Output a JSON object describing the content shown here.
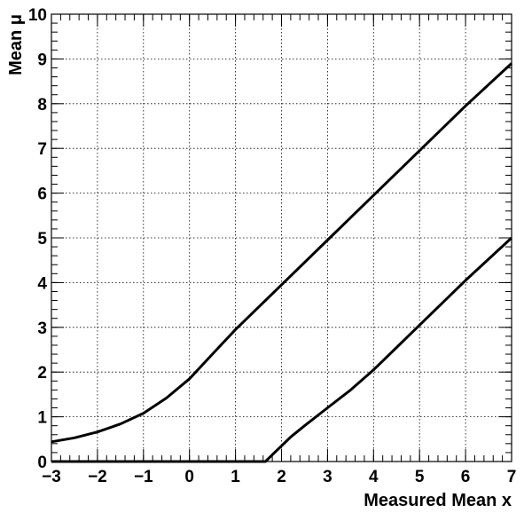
{
  "chart_data": {
    "type": "line",
    "title": "",
    "xlabel": "Measured Mean x",
    "ylabel": "Mean μ",
    "xlim": [
      -3,
      7
    ],
    "ylim": [
      0,
      10
    ],
    "xticks": [
      -3,
      -2,
      -1,
      0,
      1,
      2,
      3,
      4,
      5,
      6,
      7
    ],
    "xtick_labels": [
      "−3",
      "−2",
      "−1",
      "0",
      "1",
      "2",
      "3",
      "4",
      "5",
      "6",
      "7"
    ],
    "yticks": [
      0,
      1,
      2,
      3,
      4,
      5,
      6,
      7,
      8,
      9,
      10
    ],
    "ytick_labels": [
      "0",
      "1",
      "2",
      "3",
      "4",
      "5",
      "6",
      "7",
      "8",
      "9",
      "10"
    ],
    "grid": true,
    "series": [
      {
        "x": [
          -3,
          -2.5,
          -2,
          -1.5,
          -1,
          -0.5,
          0,
          0.5,
          1,
          2,
          3,
          4,
          5,
          6,
          7
        ],
        "y": [
          0.44,
          0.53,
          0.66,
          0.84,
          1.08,
          1.42,
          1.85,
          2.4,
          2.95,
          3.95,
          4.95,
          5.95,
          6.95,
          7.95,
          8.9
        ]
      },
      {
        "x": [
          -3,
          1.65,
          1.8,
          2,
          2.2,
          2.5,
          3,
          3.5,
          4,
          4.5,
          5,
          6,
          7
        ],
        "y": [
          0,
          0,
          0.15,
          0.35,
          0.55,
          0.8,
          1.2,
          1.6,
          2.05,
          2.55,
          3.05,
          4.05,
          5.0
        ]
      }
    ]
  }
}
